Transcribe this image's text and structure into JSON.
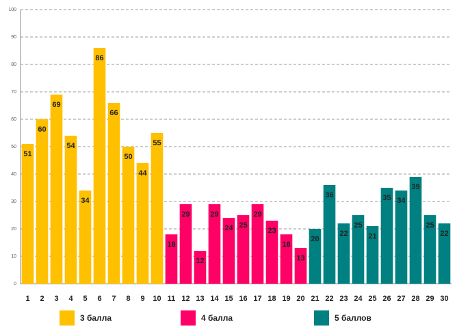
{
  "chart_data": {
    "type": "bar",
    "categories": [
      "1",
      "2",
      "3",
      "4",
      "5",
      "6",
      "7",
      "8",
      "9",
      "10",
      "11",
      "12",
      "13",
      "14",
      "15",
      "16",
      "17",
      "18",
      "19",
      "20",
      "21",
      "22",
      "23",
      "24",
      "25",
      "26",
      "27",
      "28",
      "29",
      "30"
    ],
    "series": [
      {
        "name": "3 балла",
        "color": "#FFC000",
        "values": [
          51,
          60,
          69,
          54,
          34,
          86,
          66,
          50,
          44,
          55,
          null,
          null,
          null,
          null,
          null,
          null,
          null,
          null,
          null,
          null,
          null,
          null,
          null,
          null,
          null,
          null,
          null,
          null,
          null,
          null
        ]
      },
      {
        "name": "4 балла",
        "color": "#FF0066",
        "values": [
          null,
          null,
          null,
          null,
          null,
          null,
          null,
          null,
          null,
          null,
          18,
          29,
          12,
          29,
          24,
          25,
          29,
          23,
          18,
          13,
          null,
          null,
          null,
          null,
          null,
          null,
          null,
          null,
          null,
          null
        ]
      },
      {
        "name": "5 баллов",
        "color": "#008080",
        "values": [
          null,
          null,
          null,
          null,
          null,
          null,
          null,
          null,
          null,
          null,
          null,
          null,
          null,
          null,
          null,
          null,
          null,
          null,
          null,
          null,
          20,
          36,
          22,
          25,
          21,
          35,
          34,
          39,
          25,
          22
        ]
      }
    ],
    "ylim": [
      0,
      100
    ],
    "yticks": [
      0,
      10,
      20,
      30,
      40,
      50,
      60,
      70,
      80,
      90,
      100
    ],
    "grid": true,
    "legend": "bottom"
  }
}
